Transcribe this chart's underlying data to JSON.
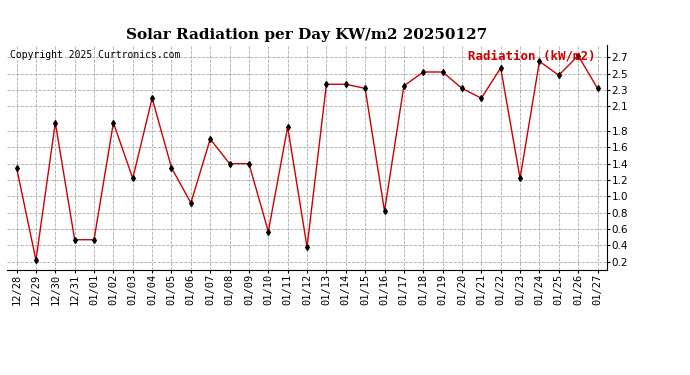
{
  "title": "Solar Radiation per Day KW/m2 20250127",
  "copyright": "Copyright 2025 Curtronics.com",
  "legend_label": "Radiation (kW/m2)",
  "dates": [
    "12/28",
    "12/29",
    "12/30",
    "12/31",
    "01/01",
    "01/02",
    "01/03",
    "01/04",
    "01/05",
    "01/06",
    "01/07",
    "01/08",
    "01/09",
    "01/10",
    "01/11",
    "01/12",
    "01/13",
    "01/14",
    "01/15",
    "01/16",
    "01/17",
    "01/18",
    "01/19",
    "01/20",
    "01/21",
    "01/22",
    "01/23",
    "01/24",
    "01/25",
    "01/26",
    "01/27"
  ],
  "values": [
    1.35,
    0.22,
    1.9,
    0.47,
    0.47,
    1.9,
    1.22,
    2.2,
    1.35,
    0.92,
    1.7,
    1.4,
    1.4,
    0.57,
    1.85,
    0.38,
    2.37,
    2.37,
    2.32,
    0.82,
    2.35,
    2.52,
    2.52,
    2.32,
    2.2,
    2.57,
    1.22,
    2.65,
    2.48,
    2.72,
    2.32
  ],
  "line_color": "#cc0000",
  "marker": "d",
  "marker_color": "black",
  "marker_size": 3,
  "ylim": [
    0.1,
    2.85
  ],
  "yticks": [
    0.2,
    0.4,
    0.6,
    0.8,
    1.0,
    1.2,
    1.4,
    1.6,
    1.8,
    2.1,
    2.3,
    2.5,
    2.7
  ],
  "grid_color": "#aaaaaa",
  "grid_linestyle": "--",
  "background_color": "#ffffff",
  "title_fontsize": 11,
  "copyright_fontsize": 7,
  "legend_fontsize": 9,
  "tick_fontsize": 7.5
}
